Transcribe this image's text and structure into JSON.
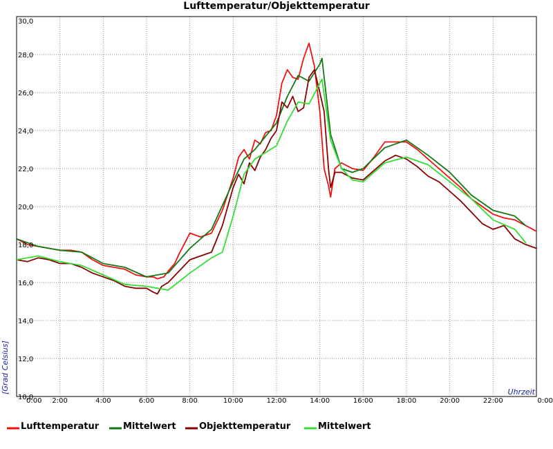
{
  "chart_data": {
    "type": "line",
    "title": "Lufttemperatur/Objekttemperatur",
    "xlabel": "Uhrzeit",
    "ylabel": "[Grad Celsius]",
    "x_unit": "hours",
    "xlim": [
      0,
      24
    ],
    "ylim": [
      10,
      30
    ],
    "grid": true,
    "legend_position": "bottom",
    "x_ticks": [
      {
        "value": 0,
        "label": "0:00"
      },
      {
        "value": 2,
        "label": "2:00"
      },
      {
        "value": 4,
        "label": "4:00"
      },
      {
        "value": 6,
        "label": "6:00"
      },
      {
        "value": 8,
        "label": "8:00"
      },
      {
        "value": 10,
        "label": "10:00"
      },
      {
        "value": 12,
        "label": "12:00"
      },
      {
        "value": 14,
        "label": "14:00"
      },
      {
        "value": 16,
        "label": "16:00"
      },
      {
        "value": 18,
        "label": "18:00"
      },
      {
        "value": 20,
        "label": "20:00"
      },
      {
        "value": 22,
        "label": "22:00"
      },
      {
        "value": 24,
        "label": "0:00"
      }
    ],
    "y_ticks": [
      {
        "value": 10,
        "label": "10,0"
      },
      {
        "value": 12,
        "label": "12,0"
      },
      {
        "value": 14,
        "label": "14,0"
      },
      {
        "value": 16,
        "label": "16,0"
      },
      {
        "value": 18,
        "label": "18,0"
      },
      {
        "value": 20,
        "label": "20,0"
      },
      {
        "value": 22,
        "label": "22,0"
      },
      {
        "value": 24,
        "label": "24,0"
      },
      {
        "value": 26,
        "label": "26,0"
      },
      {
        "value": 28,
        "label": "28,0"
      },
      {
        "value": 30,
        "label": "30,0"
      }
    ],
    "series": [
      {
        "name": "Lufttemperatur",
        "color": "#ee1111",
        "x": [
          0,
          0.5,
          1,
          1.5,
          2,
          2.5,
          3,
          3.5,
          4,
          4.5,
          5,
          5.5,
          6,
          6.3,
          6.5,
          6.8,
          7,
          7.3,
          7.5,
          8,
          8.5,
          9,
          9.5,
          10,
          10.25,
          10.5,
          10.75,
          11,
          11.25,
          11.5,
          11.75,
          12,
          12.25,
          12.5,
          12.75,
          13,
          13.25,
          13.5,
          13.75,
          14,
          14.2,
          14.4,
          14.5,
          14.7,
          15,
          15.5,
          16,
          16.5,
          17,
          17.5,
          18,
          18.5,
          19,
          19.5,
          20,
          20.5,
          21,
          21.5,
          22,
          22.5,
          23,
          23.5,
          24
        ],
        "y": [
          18.3,
          18.0,
          17.9,
          17.8,
          17.7,
          17.7,
          17.6,
          17.2,
          16.9,
          16.8,
          16.7,
          16.4,
          16.3,
          16.3,
          16.2,
          16.3,
          16.6,
          17.0,
          17.5,
          18.6,
          18.4,
          18.6,
          19.8,
          21.5,
          22.6,
          23.0,
          22.5,
          23.5,
          23.3,
          23.9,
          24.0,
          24.8,
          26.5,
          27.2,
          26.8,
          26.7,
          27.8,
          28.6,
          27.4,
          25.0,
          22.0,
          21.1,
          20.5,
          22.0,
          22.3,
          22.0,
          21.9,
          22.6,
          23.4,
          23.4,
          23.4,
          23.0,
          22.5,
          22.0,
          21.5,
          21.0,
          20.4,
          20.0,
          19.6,
          19.4,
          19.3,
          19.0,
          18.7
        ]
      },
      {
        "name": "Mittelwert",
        "color": "#117711",
        "x": [
          0,
          1,
          2,
          3,
          4,
          5,
          6,
          7,
          8,
          9,
          10,
          10.5,
          11,
          12,
          12.5,
          13,
          13.5,
          14,
          14.1,
          14.5,
          15,
          15.5,
          16,
          17,
          18,
          19,
          20,
          21,
          22,
          23,
          23.5
        ],
        "y": [
          18.3,
          17.9,
          17.7,
          17.6,
          17.0,
          16.8,
          16.3,
          16.5,
          17.8,
          18.8,
          21.3,
          22.5,
          23.0,
          24.4,
          25.8,
          26.9,
          26.6,
          27.5,
          27.8,
          23.8,
          22.0,
          21.8,
          22.0,
          23.1,
          23.5,
          22.7,
          21.8,
          20.6,
          19.8,
          19.5,
          19.0
        ]
      },
      {
        "name": "Objekttemperatur",
        "color": "#880000",
        "x": [
          0,
          0.5,
          1,
          1.5,
          2,
          2.5,
          3,
          3.5,
          4,
          4.5,
          5,
          5.5,
          6,
          6.3,
          6.5,
          6.7,
          7,
          7.5,
          8,
          8.5,
          9,
          9.5,
          10,
          10.25,
          10.5,
          10.75,
          11,
          11.25,
          11.5,
          11.75,
          12,
          12.25,
          12.5,
          12.75,
          13,
          13.25,
          13.5,
          13.75,
          14,
          14.2,
          14.4,
          14.5,
          14.7,
          15,
          15.5,
          16,
          16.5,
          17,
          17.5,
          18,
          18.5,
          19,
          19.5,
          20,
          20.5,
          21,
          21.5,
          22,
          22.5,
          23,
          23.5,
          24
        ],
        "y": [
          17.2,
          17.1,
          17.3,
          17.2,
          17.0,
          17.0,
          16.8,
          16.5,
          16.3,
          16.1,
          15.8,
          15.7,
          15.7,
          15.5,
          15.4,
          15.8,
          16.0,
          16.6,
          17.2,
          17.4,
          17.6,
          19.0,
          21.0,
          21.7,
          21.2,
          22.3,
          21.9,
          22.6,
          23.0,
          23.6,
          24.0,
          25.5,
          25.2,
          25.8,
          25.0,
          25.2,
          26.8,
          27.2,
          26.0,
          25.0,
          22.0,
          21.0,
          21.8,
          21.8,
          21.5,
          21.4,
          21.9,
          22.4,
          22.7,
          22.5,
          22.1,
          21.6,
          21.3,
          20.8,
          20.3,
          19.7,
          19.1,
          18.8,
          19.0,
          18.3,
          18.0,
          17.8
        ]
      },
      {
        "name": "Mittelwert",
        "color": "#33dd33",
        "x": [
          0,
          1,
          2,
          3,
          4,
          5,
          6,
          6.5,
          7,
          8,
          9,
          9.5,
          10,
          10.5,
          11,
          12,
          12.5,
          13,
          13.5,
          14,
          14.1,
          14.5,
          15,
          15.5,
          16,
          17,
          18,
          19,
          20,
          21,
          22,
          23,
          23.5
        ],
        "y": [
          17.2,
          17.4,
          17.1,
          16.9,
          16.4,
          15.9,
          15.8,
          15.7,
          15.6,
          16.5,
          17.3,
          17.6,
          19.5,
          21.7,
          22.5,
          23.2,
          24.5,
          25.5,
          25.4,
          26.5,
          26.7,
          23.5,
          22.0,
          21.4,
          21.3,
          22.3,
          22.6,
          22.2,
          21.3,
          20.4,
          19.3,
          18.8,
          18.1
        ]
      }
    ]
  }
}
